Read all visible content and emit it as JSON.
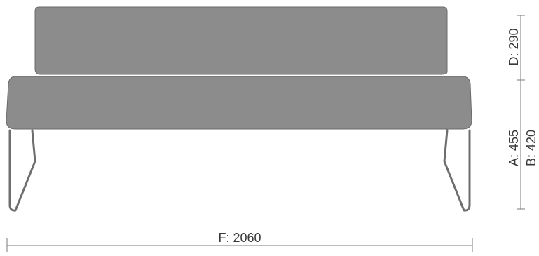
{
  "colors": {
    "upholstery": "#8c8c8c",
    "upholstery_dark": "#7a7a7a",
    "outline": "#5a5a5a",
    "frame": "#6e6e6e",
    "dimension_line": "#7a7a7a",
    "text": "#3a3a3a"
  },
  "labels": {
    "width": "F: 2060",
    "back_height": "D: 290",
    "seat_height": "A: 455",
    "seat_height_b": "B: 420"
  }
}
